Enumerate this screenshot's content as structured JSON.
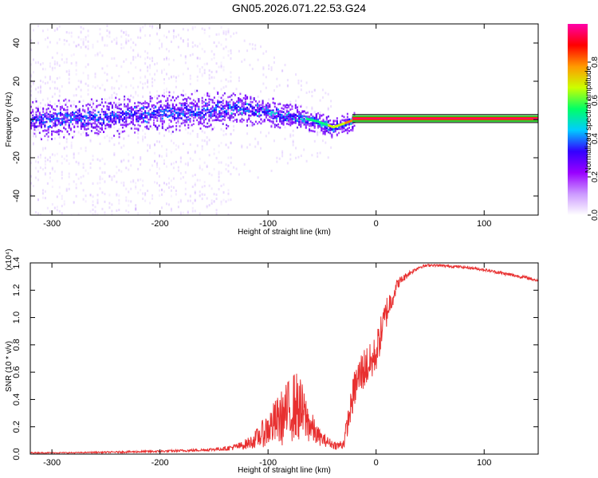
{
  "title": "GN05.2026.071.22.53.G24",
  "chart_data": [
    {
      "type": "heatmap",
      "xlabel": "Height of straight line (km)",
      "ylabel": "Frequency (Hz)",
      "xlim": [
        -320,
        150
      ],
      "ylim": [
        -50,
        50
      ],
      "xticks": [
        -300,
        -200,
        -100,
        0,
        100
      ],
      "yticks": [
        -40,
        -20,
        0,
        20,
        40
      ],
      "colorbar": {
        "label": "Normalized spectral amplitude",
        "range": [
          0.0,
          1.0
        ],
        "ticks": [
          0.0,
          0.2,
          0.4,
          0.6,
          0.8
        ],
        "colors": [
          "#ffffff",
          "#cc99ff",
          "#9900ff",
          "#3300ff",
          "#00ccff",
          "#00ff66",
          "#ccff00",
          "#ff9900",
          "#ff0000",
          "#ff00aa"
        ]
      },
      "signal_trace": {
        "x": [
          -320,
          -280,
          -240,
          -200,
          -160,
          -130,
          -110,
          -90,
          -70,
          -55,
          -45,
          -40,
          -35,
          -30,
          -25,
          -20,
          -10,
          0,
          50,
          100,
          150
        ],
        "y": [
          0,
          1,
          2,
          4,
          5,
          6,
          5,
          3,
          1,
          -1,
          -3,
          -4,
          -3,
          -2,
          -1,
          0,
          0,
          0.5,
          0.5,
          0.5,
          0.5
        ]
      }
    },
    {
      "type": "line",
      "xlabel": "Height of straight line (km)",
      "ylabel": "SNR (10 * v/v)",
      "multiplier": "(x10⁴)",
      "xlim": [
        -320,
        150
      ],
      "ylim": [
        0,
        1.4
      ],
      "xticks": [
        -300,
        -200,
        -100,
        0,
        100
      ],
      "yticks": [
        0.0,
        0.2,
        0.4,
        0.6,
        0.8,
        1.0,
        1.2,
        1.4
      ],
      "series": [
        {
          "color": "#e83030",
          "x": [
            -320,
            -280,
            -240,
            -200,
            -160,
            -140,
            -125,
            -115,
            -105,
            -95,
            -85,
            -75,
            -70,
            -65,
            -60,
            -55,
            -50,
            -45,
            -40,
            -35,
            -30,
            -25,
            -20,
            -15,
            -10,
            -5,
            0,
            5,
            10,
            15,
            20,
            30,
            40,
            50,
            60,
            80,
            100,
            120,
            140,
            150
          ],
          "y": [
            0.01,
            0.01,
            0.015,
            0.02,
            0.03,
            0.04,
            0.06,
            0.09,
            0.15,
            0.22,
            0.28,
            0.36,
            0.32,
            0.26,
            0.2,
            0.14,
            0.11,
            0.09,
            0.07,
            0.06,
            0.08,
            0.28,
            0.48,
            0.58,
            0.64,
            0.66,
            0.74,
            0.9,
            1.05,
            1.15,
            1.25,
            1.32,
            1.37,
            1.385,
            1.38,
            1.37,
            1.35,
            1.32,
            1.29,
            1.27
          ],
          "noise": [
            0.004,
            0.004,
            0.006,
            0.008,
            0.01,
            0.015,
            0.03,
            0.05,
            0.1,
            0.16,
            0.22,
            0.26,
            0.24,
            0.18,
            0.12,
            0.08,
            0.05,
            0.04,
            0.03,
            0.03,
            0.05,
            0.1,
            0.14,
            0.16,
            0.16,
            0.15,
            0.14,
            0.13,
            0.12,
            0.08,
            0.04,
            0.02,
            0.012,
            0.01,
            0.01,
            0.01,
            0.01,
            0.012,
            0.012,
            0.012
          ]
        }
      ]
    }
  ]
}
